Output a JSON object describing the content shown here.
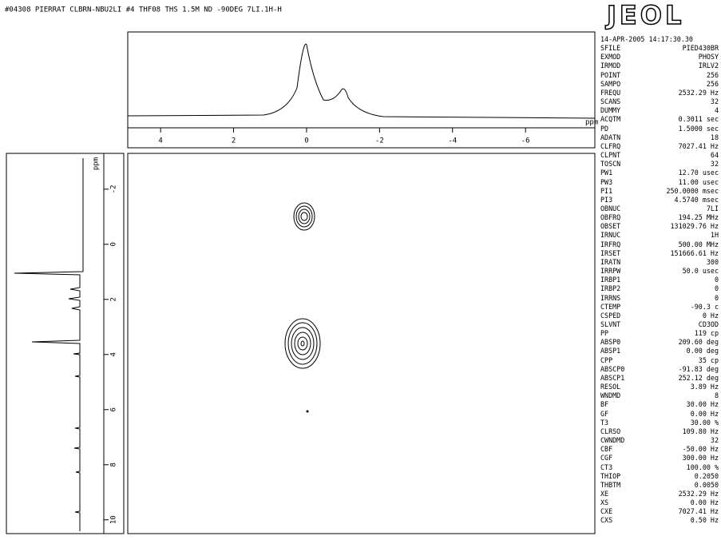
{
  "header": {
    "title": "#04308 PIERRAT CLBRN-NBU2LI #4 THF08 THS 1.5M ND -90DEG 7LI.1H-H",
    "logo": "JEOL",
    "date": "14-APR-2005 14:17:30.30"
  },
  "chart_data": {
    "type": "nmr2d",
    "xlabel": "ppm",
    "ylabel": "ppm",
    "xlim": [
      4.9,
      -7.9
    ],
    "xticks": [
      4,
      2,
      0,
      -2,
      -4,
      -6
    ],
    "ylim": [
      -3.3,
      10.5
    ],
    "yticks": [
      -2,
      0,
      2,
      4,
      6,
      8,
      10
    ]
  },
  "parameters": [
    {
      "name": "SFILE",
      "value": "PIED430BR"
    },
    {
      "name": "EXMOD",
      "value": "PHOSY"
    },
    {
      "name": "IRMOD",
      "value": "IRLV2"
    },
    {
      "name": "POINT",
      "value": "256"
    },
    {
      "name": "SAMPO",
      "value": "256"
    },
    {
      "name": "FREQU",
      "value": "2532.29 Hz"
    },
    {
      "name": "SCANS",
      "value": "32"
    },
    {
      "name": "DUMMY",
      "value": "4"
    },
    {
      "name": "ACQTM",
      "value": "0.3011 sec"
    },
    {
      "name": "PD",
      "value": "1.5000 sec"
    },
    {
      "name": "ADATN",
      "value": "18"
    },
    {
      "name": "CLFRQ",
      "value": "7027.41 Hz"
    },
    {
      "name": "CLPNT",
      "value": "64"
    },
    {
      "name": "TOSCN",
      "value": "32"
    },
    {
      "name": "PW1",
      "value": "12.70 usec"
    },
    {
      "name": "PW3",
      "value": "11.00 usec"
    },
    {
      "name": "PI1",
      "value": "250.0000 msec"
    },
    {
      "name": "PI3",
      "value": "4.5740 msec"
    },
    {
      "name": "OBNUC",
      "value": "7LI"
    },
    {
      "name": "OBFRQ",
      "value": "194.25 MHz"
    },
    {
      "name": "OBSET",
      "value": "131029.76 Hz"
    },
    {
      "name": "IRNUC",
      "value": "1H"
    },
    {
      "name": "IRFRQ",
      "value": "500.00 MHz"
    },
    {
      "name": "IRSET",
      "value": "151666.61 Hz"
    },
    {
      "name": "IRATN",
      "value": "300"
    },
    {
      "name": "IRRPW",
      "value": "50.0 usec"
    },
    {
      "name": "IRBP1",
      "value": "0"
    },
    {
      "name": "IRBP2",
      "value": "0"
    },
    {
      "name": "IRRNS",
      "value": "0"
    },
    {
      "name": "CTEMP",
      "value": "-90.3 c"
    },
    {
      "name": "CSPED",
      "value": "0 Hz"
    },
    {
      "name": "SLVNT",
      "value": "CD3OD"
    },
    {
      "name": "PP",
      "value": "119 cp"
    },
    {
      "name": "ABSP0",
      "value": "209.60 deg"
    },
    {
      "name": "ABSP1",
      "value": "0.00 deg"
    },
    {
      "name": "CPP",
      "value": "35 cp"
    },
    {
      "name": "ABSCP0",
      "value": "-91.83 deg"
    },
    {
      "name": "ABSCP1",
      "value": "252.12 deg"
    },
    {
      "name": "RESOL",
      "value": "3.89 Hz"
    },
    {
      "name": "WNDMD",
      "value": "8"
    },
    {
      "name": "BF",
      "value": "30.00 Hz"
    },
    {
      "name": "GF",
      "value": "0.00 Hz"
    },
    {
      "name": "T3",
      "value": "30.00 %"
    },
    {
      "name": "CLRSO",
      "value": "109.80 Hz"
    },
    {
      "name": "CWNDMD",
      "value": "32"
    },
    {
      "name": "CBF",
      "value": "-50.00 Hz"
    },
    {
      "name": "CGF",
      "value": "300.00 Hz"
    },
    {
      "name": "CT3",
      "value": "100.00 %"
    },
    {
      "name": "THIOP",
      "value": "0.2050"
    },
    {
      "name": "THBTM",
      "value": "0.0050"
    },
    {
      "name": "XE",
      "value": "2532.29 Hz"
    },
    {
      "name": "XS",
      "value": "0.00 Hz"
    },
    {
      "name": "CXE",
      "value": "7027.41 Hz"
    },
    {
      "name": "CXS",
      "value": "0.50 Hz"
    }
  ]
}
